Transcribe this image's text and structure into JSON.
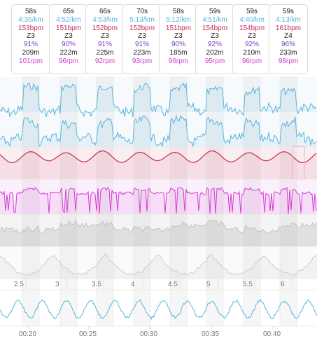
{
  "colors": {
    "pace": "#5ab4dc",
    "heart_rate": "#c8285a",
    "zone": "#222222",
    "percent": "#7a3cc8",
    "stride": "#222222",
    "cadence": "#d23cd2",
    "elevation": "#bbbbbb"
  },
  "laps": [
    {
      "duration": "58s",
      "pace": "4:36/km",
      "hr": "153bpm",
      "zone": "Z3",
      "pct": "91%",
      "dist": "209m",
      "cad": "101rpm"
    },
    {
      "duration": "65s",
      "pace": "4:52/km",
      "hr": "151bpm",
      "zone": "Z3",
      "pct": "90%",
      "dist": "222m",
      "cad": "96rpm"
    },
    {
      "duration": "66s",
      "pace": "4:53/km",
      "hr": "152bpm",
      "zone": "Z3",
      "pct": "91%",
      "dist": "225m",
      "cad": "92rpm"
    },
    {
      "duration": "70s",
      "pace": "5:13/km",
      "hr": "152bpm",
      "zone": "Z3",
      "pct": "91%",
      "dist": "223m",
      "cad": "93rpm"
    },
    {
      "duration": "58s",
      "pace": "5:12/km",
      "hr": "151bpm",
      "zone": "Z3",
      "pct": "90%",
      "dist": "185m",
      "cad": "96rpm"
    },
    {
      "duration": "59s",
      "pace": "4:51/km",
      "hr": "154bpm",
      "zone": "Z3",
      "pct": "92%",
      "dist": "202m",
      "cad": "95rpm"
    },
    {
      "duration": "59s",
      "pace": "4:40/km",
      "hr": "154bpm",
      "zone": "Z3",
      "pct": "92%",
      "dist": "210m",
      "cad": "96rpm"
    },
    {
      "duration": "59s",
      "pace": "4:13/km",
      "hr": "161bpm",
      "zone": "Z4",
      "pct": "96%",
      "dist": "233m",
      "cad": "98rpm"
    }
  ],
  "distance_axis": [
    "2.5",
    "3",
    "3.5",
    "4",
    "4.5",
    "5",
    "5.5",
    "6"
  ],
  "time_axis": [
    "00:20",
    "00:25",
    "00:30",
    "00:35",
    "00:40"
  ]
}
